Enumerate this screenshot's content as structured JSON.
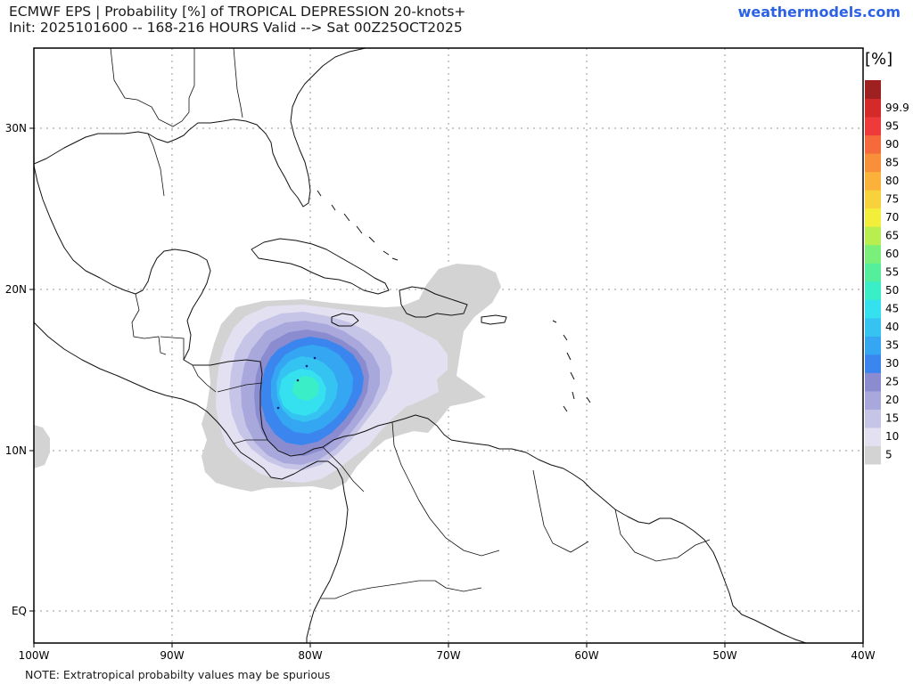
{
  "header": {
    "title_line1": "ECMWF EPS | Probability [%] of TROPICAL DEPRESSION 20-knots+",
    "title_line2": "Init: 2025101600 -- 168-216 HOURS Valid --> Sat 00Z25OCT2025",
    "brand": "weathermodels.com"
  },
  "footer": {
    "note": "NOTE: Extratropical probabilty values may be spurious"
  },
  "map": {
    "lat_labels": [
      "30N",
      "20N",
      "10N",
      "EQ"
    ],
    "lon_labels": [
      "100W",
      "90W",
      "80W",
      "70W",
      "60W",
      "50W",
      "40W"
    ]
  },
  "legend": {
    "unit_label": "[%]",
    "levels": [
      {
        "label": "5",
        "color": "#d3d3d3"
      },
      {
        "label": "10",
        "color": "#e3e1f1"
      },
      {
        "label": "15",
        "color": "#c6c5e8"
      },
      {
        "label": "20",
        "color": "#a8a8dd"
      },
      {
        "label": "25",
        "color": "#8b8bd0"
      },
      {
        "label": "30",
        "color": "#3a86ee"
      },
      {
        "label": "35",
        "color": "#35a6f2"
      },
      {
        "label": "40",
        "color": "#35c4f2"
      },
      {
        "label": "45",
        "color": "#35e0ef"
      },
      {
        "label": "50",
        "color": "#3aeec8"
      },
      {
        "label": "55",
        "color": "#55ee9c"
      },
      {
        "label": "60",
        "color": "#7af07a"
      },
      {
        "label": "65",
        "color": "#b8ee4f"
      },
      {
        "label": "70",
        "color": "#f2ee3a"
      },
      {
        "label": "75",
        "color": "#f8d23a"
      },
      {
        "label": "80",
        "color": "#fab23a"
      },
      {
        "label": "85",
        "color": "#f8903a"
      },
      {
        "label": "90",
        "color": "#f56a3a"
      },
      {
        "label": "95",
        "color": "#ee3a3a"
      },
      {
        "label": "99.9",
        "color": "#d42a2a"
      },
      {
        "label": "",
        "color": "#9e2020"
      }
    ]
  }
}
